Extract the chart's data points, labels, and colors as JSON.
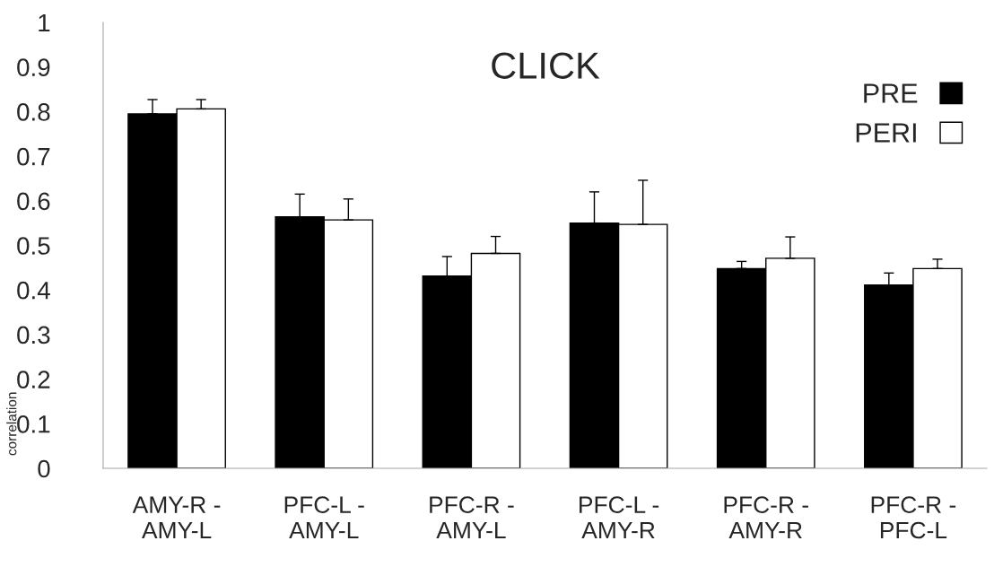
{
  "chart_data": {
    "type": "bar",
    "title": "CLICK",
    "ylabel": "correlation",
    "categories": [
      "AMY-R -\nAMY-L",
      "PFC-L -\nAMY-L",
      "PFC-R -\nAMY-L",
      "PFC-L -\nAMY-R",
      "PFC-R -\nAMY-R",
      "PFC-R -\nPFC-L"
    ],
    "series": [
      {
        "name": "PRE",
        "color": "#000000",
        "values": [
          0.795,
          0.564,
          0.431,
          0.55,
          0.448,
          0.411
        ],
        "errors": [
          [
            0.795,
            0.827
          ],
          [
            0.564,
            0.615
          ],
          [
            0.431,
            0.475
          ],
          [
            0.55,
            0.62
          ],
          [
            0.448,
            0.464
          ],
          [
            0.411,
            0.438
          ]
        ]
      },
      {
        "name": "PERI",
        "color": "#ffffff",
        "values": [
          0.806,
          0.557,
          0.482,
          0.547,
          0.471,
          0.448
        ],
        "errors": [
          [
            0.806,
            0.827
          ],
          [
            0.557,
            0.604
          ],
          [
            0.482,
            0.52
          ],
          [
            0.547,
            0.646
          ],
          [
            0.471,
            0.519
          ],
          [
            0.448,
            0.469
          ]
        ]
      }
    ],
    "ylim": [
      0,
      1
    ],
    "yticks": [
      0,
      0.1,
      0.2,
      0.3,
      0.4,
      0.5,
      0.6,
      0.7,
      0.8,
      0.9,
      1
    ],
    "grid": false,
    "legend": "top right"
  }
}
